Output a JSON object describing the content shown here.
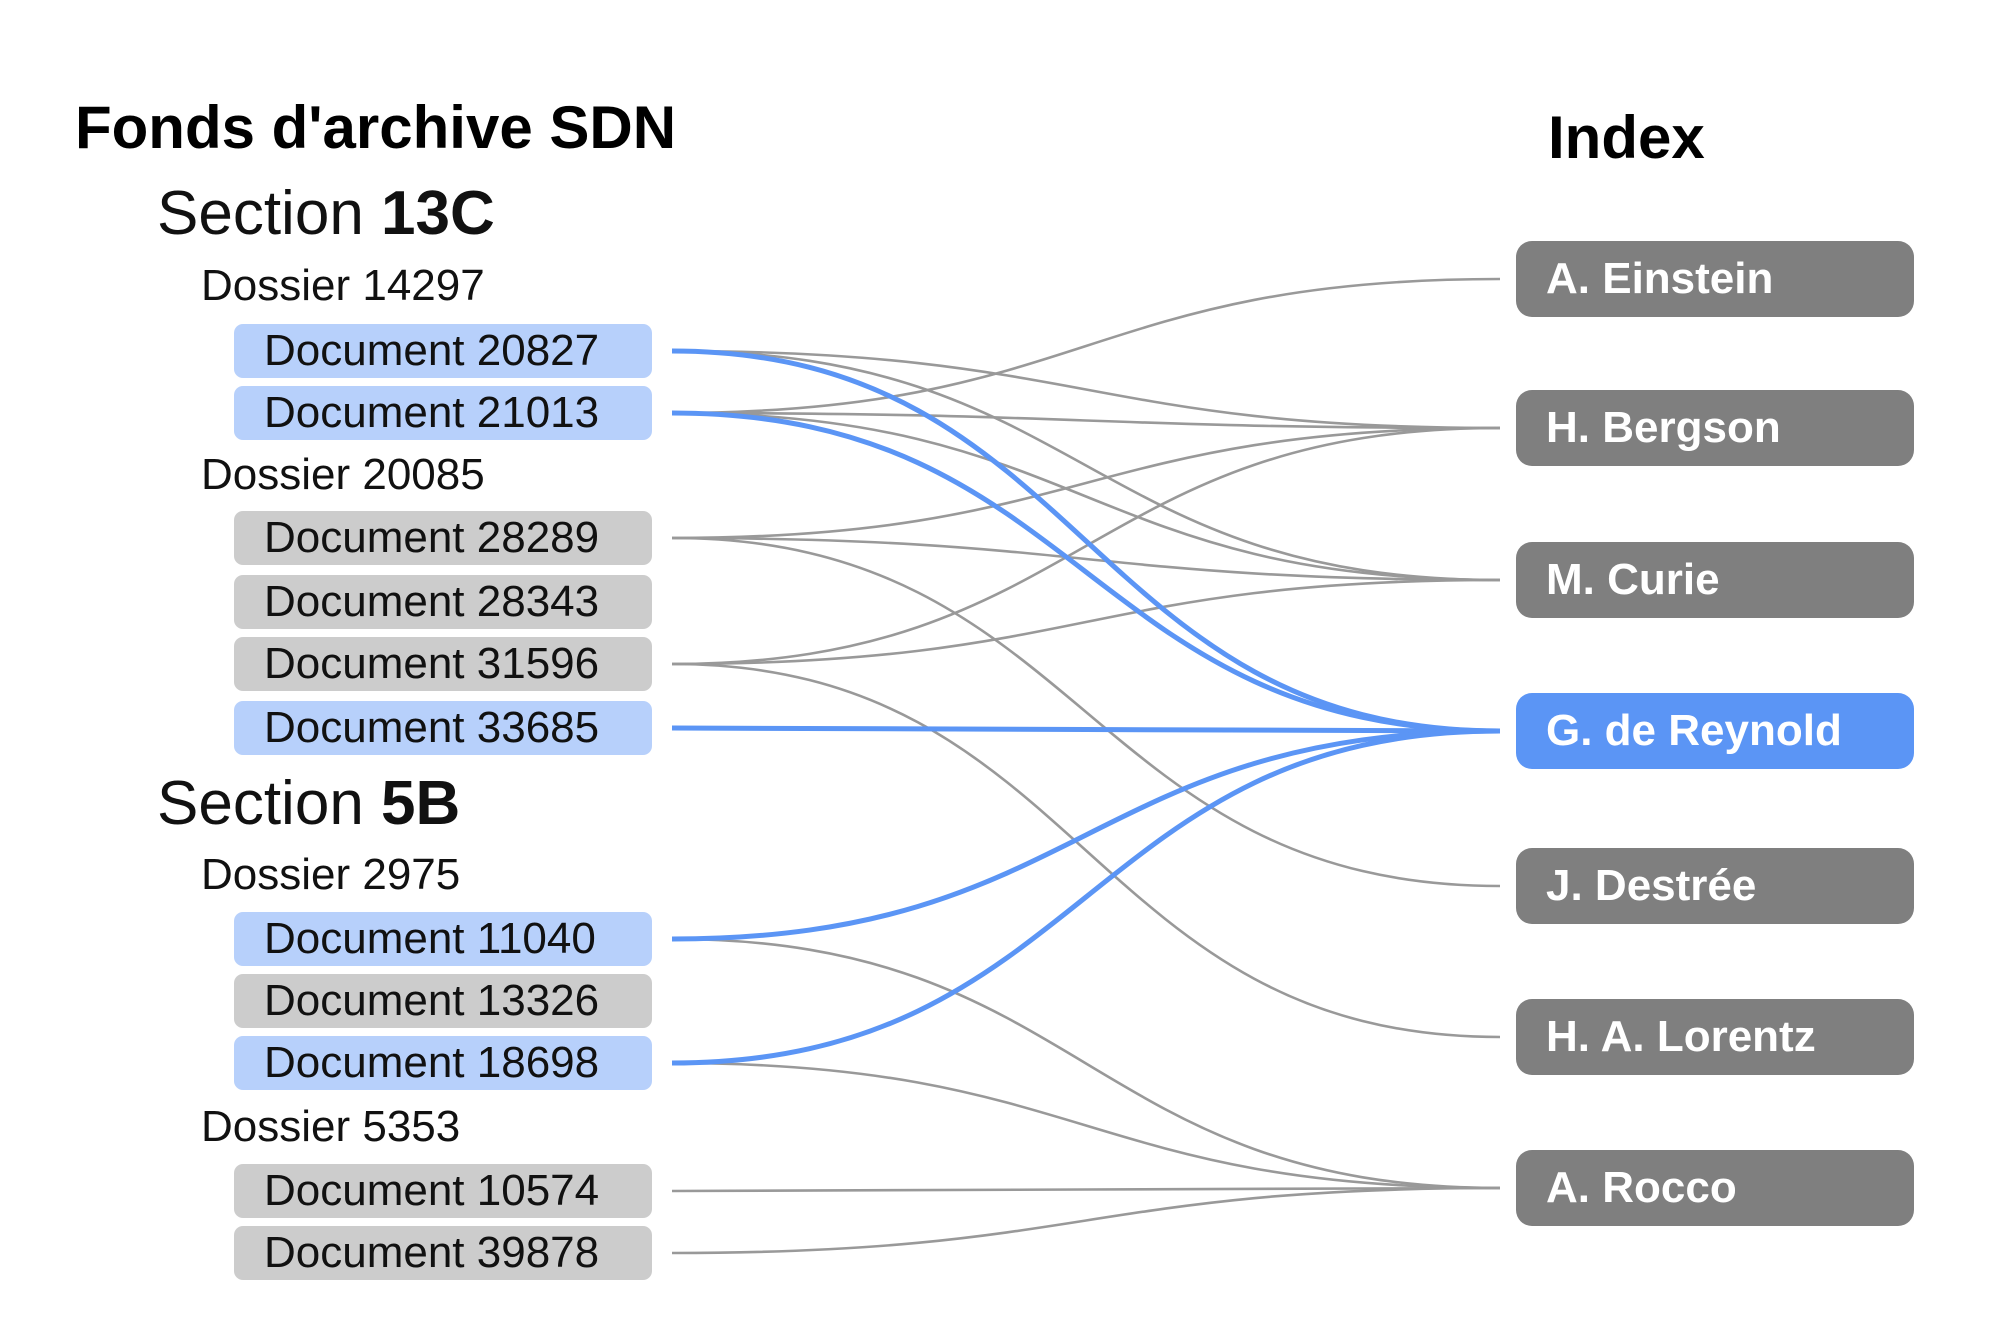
{
  "title_left": "Fonds d'archive SDN",
  "title_right": "Index",
  "colors": {
    "highlight_link": "#5b95f5",
    "link": "#999999",
    "doc_highlight": "#b7d0fb",
    "doc": "#cccccc",
    "index": "#7f7f7f",
    "index_highlight": "#5b95f5"
  },
  "sections": [
    {
      "prefix": "Section",
      "code": "13C",
      "dossiers": [
        {
          "label": "Dossier 14297",
          "documents": [
            {
              "id": "d20827",
              "label": "Document 20827",
              "highlighted": true
            },
            {
              "id": "d21013",
              "label": "Document 21013",
              "highlighted": true
            }
          ]
        },
        {
          "label": "Dossier 20085",
          "documents": [
            {
              "id": "d28289",
              "label": "Document 28289",
              "highlighted": false
            },
            {
              "id": "d28343",
              "label": "Document 28343",
              "highlighted": false
            },
            {
              "id": "d31596",
              "label": "Document 31596",
              "highlighted": false
            },
            {
              "id": "d33685",
              "label": "Document 33685",
              "highlighted": true
            }
          ]
        }
      ]
    },
    {
      "prefix": "Section",
      "code": "5B",
      "dossiers": [
        {
          "label": "Dossier 2975",
          "documents": [
            {
              "id": "d11040",
              "label": "Document 11040",
              "highlighted": true
            },
            {
              "id": "d13326",
              "label": "Document 13326",
              "highlighted": false
            },
            {
              "id": "d18698",
              "label": "Document 18698",
              "highlighted": true
            }
          ]
        },
        {
          "label": "Dossier 5353",
          "documents": [
            {
              "id": "d10574",
              "label": "Document 10574",
              "highlighted": false
            },
            {
              "id": "d39878",
              "label": "Document 39878",
              "highlighted": false
            }
          ]
        }
      ]
    }
  ],
  "index": [
    {
      "id": "einstein",
      "label": "A. Einstein",
      "highlighted": false
    },
    {
      "id": "bergson",
      "label": "H. Bergson",
      "highlighted": false
    },
    {
      "id": "curie",
      "label": "M. Curie",
      "highlighted": false
    },
    {
      "id": "reynold",
      "label": "G. de Reynold",
      "highlighted": true
    },
    {
      "id": "destree",
      "label": "J. Destrée",
      "highlighted": false
    },
    {
      "id": "lorentz",
      "label": "H. A. Lorentz",
      "highlighted": false
    },
    {
      "id": "rocco",
      "label": "A. Rocco",
      "highlighted": false
    }
  ],
  "links": [
    {
      "from": "d20827",
      "to": "bergson",
      "highlighted": false
    },
    {
      "from": "d20827",
      "to": "curie",
      "highlighted": false
    },
    {
      "from": "d20827",
      "to": "reynold",
      "highlighted": true
    },
    {
      "from": "d21013",
      "to": "einstein",
      "highlighted": false
    },
    {
      "from": "d21013",
      "to": "bergson",
      "highlighted": false
    },
    {
      "from": "d21013",
      "to": "curie",
      "highlighted": false
    },
    {
      "from": "d21013",
      "to": "reynold",
      "highlighted": true
    },
    {
      "from": "d28289",
      "to": "bergson",
      "highlighted": false
    },
    {
      "from": "d28289",
      "to": "curie",
      "highlighted": false
    },
    {
      "from": "d28289",
      "to": "destree",
      "highlighted": false
    },
    {
      "from": "d31596",
      "to": "bergson",
      "highlighted": false
    },
    {
      "from": "d31596",
      "to": "curie",
      "highlighted": false
    },
    {
      "from": "d31596",
      "to": "lorentz",
      "highlighted": false
    },
    {
      "from": "d33685",
      "to": "reynold",
      "highlighted": true
    },
    {
      "from": "d11040",
      "to": "reynold",
      "highlighted": true
    },
    {
      "from": "d11040",
      "to": "rocco",
      "highlighted": false
    },
    {
      "from": "d18698",
      "to": "reynold",
      "highlighted": true
    },
    {
      "from": "d18698",
      "to": "rocco",
      "highlighted": false
    },
    {
      "from": "d10574",
      "to": "rocco",
      "highlighted": false
    },
    {
      "from": "d39878",
      "to": "rocco",
      "highlighted": false
    }
  ]
}
